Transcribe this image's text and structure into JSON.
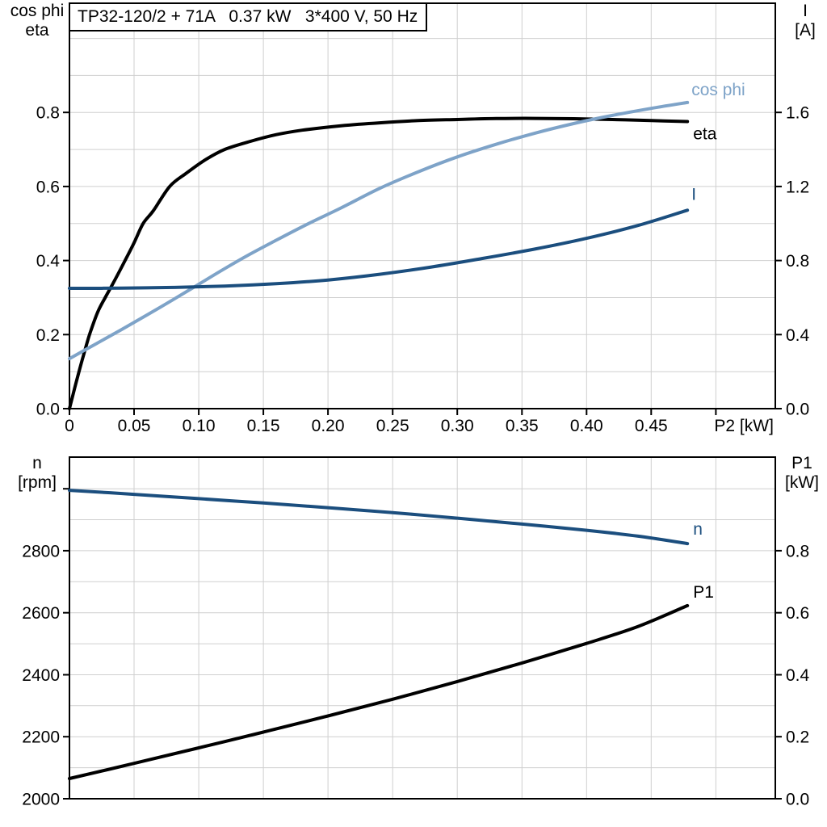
{
  "window_title": "TP32-120/2 + 71A   0.37 kW   3*400 V, 50 Hz",
  "colors": {
    "black": "#000000",
    "lightblue": "#7ea3c8",
    "darkblue": "#1b4e7e",
    "grid": "#cfcfcf",
    "axis": "#000000",
    "background": "#ffffff"
  },
  "chart_data": [
    {
      "id": "top-chart",
      "type": "line",
      "title": "TP32-120/2 + 71A   0.37 kW   3*400 V, 50 Hz",
      "xlabel": "P2 [kW]",
      "ylabel_left": "cos phi / eta",
      "ylabel_right": "I [A]",
      "grid": true,
      "legend": "curve-end-labels",
      "xlim": [
        0,
        0.546
      ],
      "x_grid_step": 0.05,
      "x_ticks": [
        0,
        0.05,
        0.1,
        0.15,
        0.2,
        0.25,
        0.3,
        0.35,
        0.4,
        0.45,
        0.5
      ],
      "x_tick_labels": [
        "0",
        "0.05",
        "0.10",
        "0.15",
        "0.20",
        "0.25",
        "0.30",
        "0.35",
        "0.40",
        "0.45",
        ""
      ],
      "left_axis": {
        "title_lines": [
          "cos phi",
          "eta"
        ],
        "lim": [
          0,
          1.095
        ],
        "grid_step": 0.1,
        "ticks": [
          0,
          0.2,
          0.4,
          0.6,
          0.8
        ],
        "tick_labels": [
          "0.0",
          "0.2",
          "0.4",
          "0.6",
          "0.8"
        ]
      },
      "right_axis": {
        "title_lines": [
          "I",
          "[A]"
        ],
        "lim": [
          0,
          2.19
        ],
        "ticks": [
          0,
          0.4,
          0.8,
          1.2,
          1.6
        ],
        "tick_labels": [
          "0.0",
          "0.4",
          "0.8",
          "1.2",
          "1.6"
        ]
      },
      "series": [
        {
          "name": "eta",
          "label": "eta",
          "axis": "left",
          "color_key": "black",
          "points": [
            [
              0,
              0
            ],
            [
              0.004,
              0.055
            ],
            [
              0.008,
              0.108
            ],
            [
              0.012,
              0.158
            ],
            [
              0.016,
              0.205
            ],
            [
              0.022,
              0.262
            ],
            [
              0.028,
              0.302
            ],
            [
              0.034,
              0.34
            ],
            [
              0.043,
              0.4
            ],
            [
              0.05,
              0.448
            ],
            [
              0.057,
              0.5
            ],
            [
              0.065,
              0.535
            ],
            [
              0.0775,
              0.6
            ],
            [
              0.09,
              0.635
            ],
            [
              0.105,
              0.672
            ],
            [
              0.12,
              0.7
            ],
            [
              0.14,
              0.722
            ],
            [
              0.16,
              0.74
            ],
            [
              0.18,
              0.752
            ],
            [
              0.21,
              0.764
            ],
            [
              0.24,
              0.772
            ],
            [
              0.27,
              0.778
            ],
            [
              0.3,
              0.781
            ],
            [
              0.33,
              0.7835
            ],
            [
              0.36,
              0.784
            ],
            [
              0.39,
              0.783
            ],
            [
              0.42,
              0.781
            ],
            [
              0.45,
              0.778
            ],
            [
              0.478,
              0.7755
            ]
          ]
        },
        {
          "name": "cosphi",
          "label": "cos phi",
          "axis": "left",
          "color_key": "lightblue",
          "points": [
            [
              0,
              0.135
            ],
            [
              0.02,
              0.174
            ],
            [
              0.04,
              0.213
            ],
            [
              0.06,
              0.253
            ],
            [
              0.08,
              0.294
            ],
            [
              0.1,
              0.336
            ],
            [
              0.12,
              0.378
            ],
            [
              0.14,
              0.418
            ],
            [
              0.16,
              0.455
            ],
            [
              0.185,
              0.5
            ],
            [
              0.21,
              0.542
            ],
            [
              0.24,
              0.595
            ],
            [
              0.27,
              0.64
            ],
            [
              0.3,
              0.68
            ],
            [
              0.33,
              0.714
            ],
            [
              0.36,
              0.744
            ],
            [
              0.39,
              0.77
            ],
            [
              0.42,
              0.792
            ],
            [
              0.45,
              0.811
            ],
            [
              0.478,
              0.827
            ]
          ]
        },
        {
          "name": "I",
          "label": "I",
          "axis": "right",
          "color_key": "darkblue",
          "points": [
            [
              0,
              0.65
            ],
            [
              0.04,
              0.651
            ],
            [
              0.08,
              0.655
            ],
            [
              0.12,
              0.662
            ],
            [
              0.16,
              0.675
            ],
            [
              0.2,
              0.695
            ],
            [
              0.24,
              0.726
            ],
            [
              0.28,
              0.765
            ],
            [
              0.32,
              0.812
            ],
            [
              0.36,
              0.862
            ],
            [
              0.4,
              0.92
            ],
            [
              0.44,
              0.99
            ],
            [
              0.478,
              1.072
            ]
          ]
        }
      ]
    },
    {
      "id": "bottom-chart",
      "type": "line",
      "title": "",
      "xlabel": "",
      "ylabel_left": "n [rpm]",
      "ylabel_right": "P1 [kW]",
      "grid": true,
      "legend": "curve-end-labels",
      "xlim": [
        0,
        0.546
      ],
      "x_grid_step": 0.05,
      "x_ticks": [],
      "x_tick_labels": [],
      "left_axis": {
        "title_lines": [
          "n",
          "[rpm]"
        ],
        "lim": [
          2000,
          3102
        ],
        "grid_step": 100,
        "ticks": [
          2000,
          2200,
          2400,
          2600,
          2800,
          3000
        ],
        "tick_labels": [
          "2000",
          "2200",
          "2400",
          "2600",
          "2800",
          ""
        ]
      },
      "right_axis": {
        "title_lines": [
          "P1",
          "[kW]"
        ],
        "lim": [
          0,
          1.102
        ],
        "ticks": [
          0,
          0.2,
          0.4,
          0.6,
          0.8
        ],
        "tick_labels": [
          "0.0",
          "0.2",
          "0.4",
          "0.6",
          "0.8"
        ]
      },
      "series": [
        {
          "name": "n",
          "label": "n",
          "axis": "left",
          "color_key": "darkblue",
          "points": [
            [
              0,
              2995
            ],
            [
              0.05,
              2982
            ],
            [
              0.1,
              2968
            ],
            [
              0.15,
              2954
            ],
            [
              0.2,
              2939
            ],
            [
              0.25,
              2923
            ],
            [
              0.3,
              2905
            ],
            [
              0.35,
              2886
            ],
            [
              0.4,
              2866
            ],
            [
              0.44,
              2847
            ],
            [
              0.478,
              2823
            ]
          ]
        },
        {
          "name": "P1",
          "label": "P1",
          "axis": "right",
          "color_key": "black",
          "points": [
            [
              0,
              0.065
            ],
            [
              0.05,
              0.114
            ],
            [
              0.1,
              0.164
            ],
            [
              0.15,
              0.215
            ],
            [
              0.2,
              0.267
            ],
            [
              0.25,
              0.321
            ],
            [
              0.3,
              0.378
            ],
            [
              0.35,
              0.438
            ],
            [
              0.4,
              0.501
            ],
            [
              0.44,
              0.556
            ],
            [
              0.478,
              0.623
            ]
          ]
        }
      ]
    }
  ]
}
